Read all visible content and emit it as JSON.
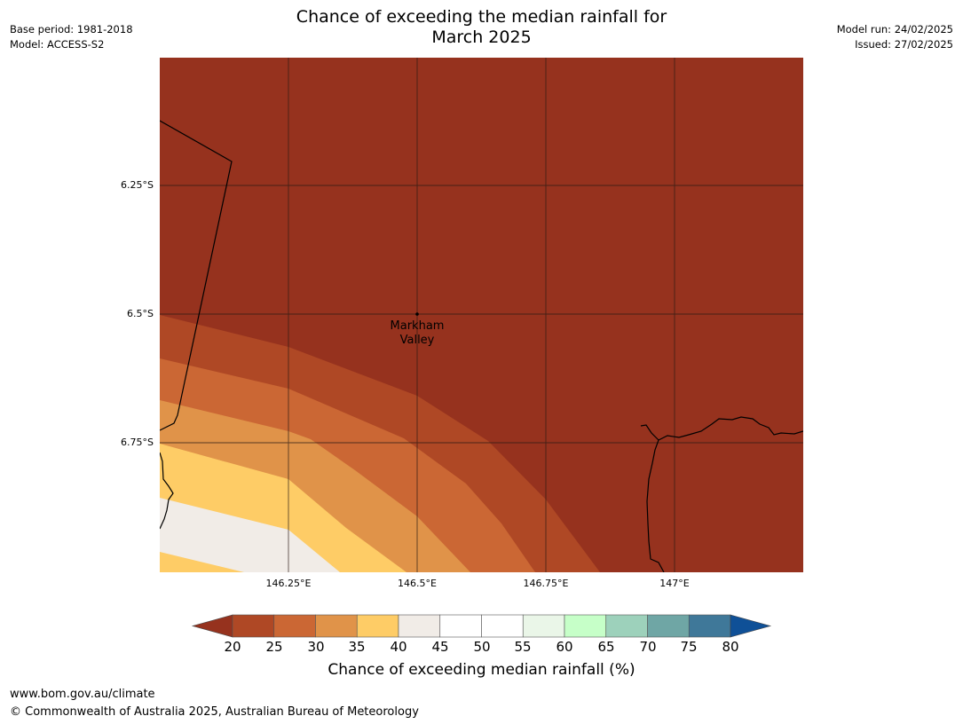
{
  "header": {
    "title_line1": "Chance of exceeding the median rainfall for",
    "title_line2": "March 2025",
    "base_period": "Base period: 1981-2018",
    "model": "Model: ACCESS-S2",
    "model_run": "Model run: 24/02/2025",
    "issued": "Issued: 27/02/2025"
  },
  "map": {
    "lat_labels": [
      "6.25°S",
      "6.5°S",
      "6.75°S"
    ],
    "lon_labels": [
      "146.25°E",
      "146.5°E",
      "146.75°E",
      "147°E"
    ],
    "place_label_line1": "Markham",
    "place_label_line2": "Valley",
    "colors": {
      "lt20": "#96321E",
      "b20_25": "#AF4825",
      "b25_30": "#CB6734",
      "b30_35": "#E09349",
      "b35_40": "#FECC66",
      "b40_45": "#F1ECE7"
    }
  },
  "colorbar": {
    "title": "Chance of exceeding median rainfall (%)",
    "ticks": [
      "20",
      "25",
      "30",
      "35",
      "40",
      "45",
      "50",
      "55",
      "60",
      "65",
      "70",
      "75",
      "80"
    ],
    "under_color": "#96321E",
    "over_color": "#0F5097",
    "colors": [
      "#AF4825",
      "#CB6734",
      "#E09349",
      "#FECC66",
      "#F1ECE7",
      "#FFFFFF",
      "#FFFFFF",
      "#EAF6E8",
      "#C6FFC8",
      "#9DD1BB",
      "#6FA6A5",
      "#3F7899"
    ]
  },
  "footer": {
    "url": "www.bom.gov.au/climate",
    "copyright": "© Commonwealth of Australia 2025, Australian Bureau of Meteorology"
  }
}
